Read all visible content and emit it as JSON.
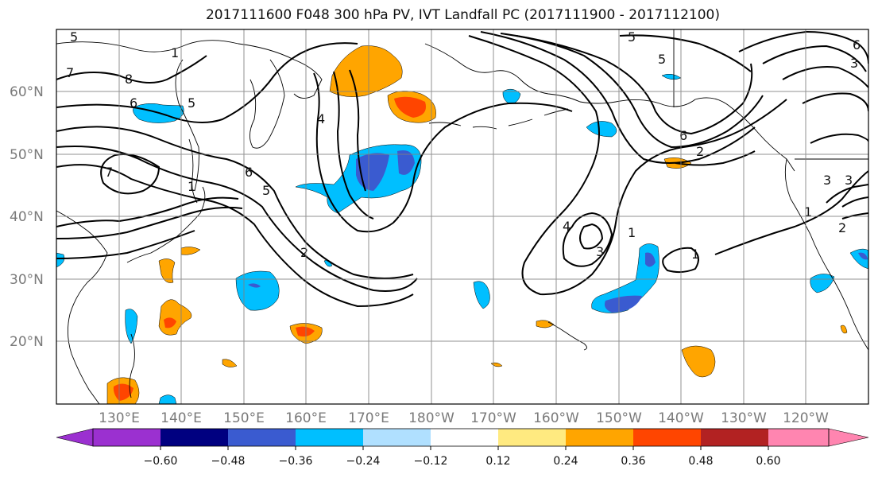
{
  "title": "2017111600 F048 300 hPa PV, IVT Landfall PC (2017111900 - 2017112100)",
  "latitude_labels": [
    "60°N",
    "50°N",
    "40°N",
    "30°N",
    "20°N"
  ],
  "longitude_labels": [
    "130°E",
    "140°E",
    "150°E",
    "160°E",
    "170°E",
    "180°W",
    "170°W",
    "160°W",
    "150°W",
    "140°W",
    "130°W",
    "120°W"
  ],
  "colorbar": {
    "tick_labels": [
      "−0.60",
      "−0.48",
      "−0.36",
      "−0.24",
      "−0.12",
      "0.12",
      "0.24",
      "0.36",
      "0.48",
      "0.60"
    ],
    "colors": [
      "#9b30d0",
      "#000080",
      "#3a5bd0",
      "#00bfff",
      "#b0e0ff",
      "#ffffff",
      "#ffea80",
      "#ffa500",
      "#ff4500",
      "#b22222",
      "#ff85b0"
    ]
  },
  "contour_labels": [
    "5",
    "5",
    "3",
    "7",
    "6",
    "5",
    "1",
    "8",
    "6",
    "5",
    "1",
    "4",
    "2",
    "7",
    "6",
    "3",
    "2",
    "1",
    "3",
    "1",
    "1",
    "2",
    "4",
    "3",
    "5",
    "6"
  ]
}
